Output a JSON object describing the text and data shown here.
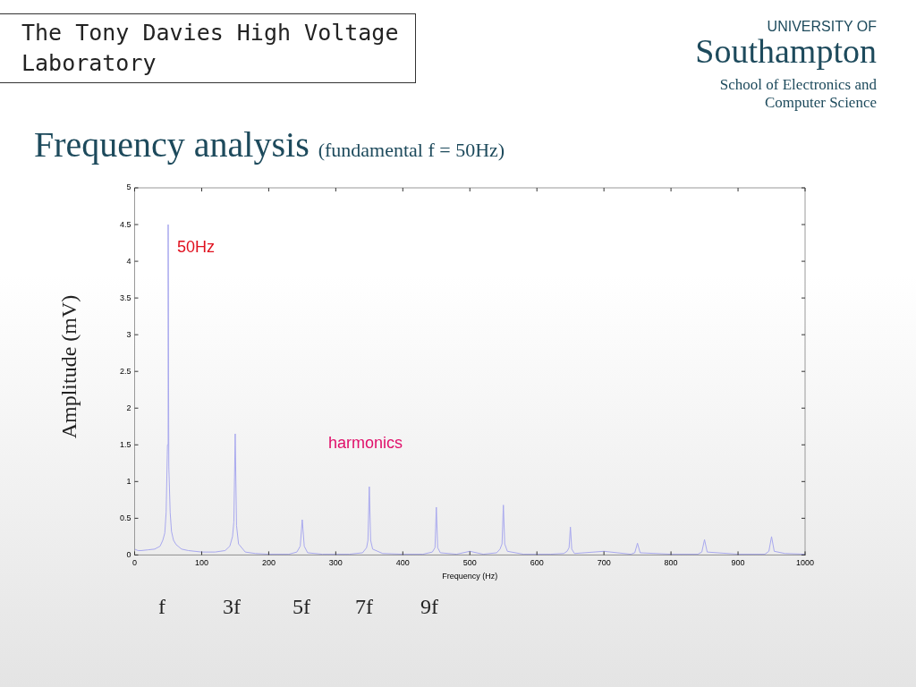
{
  "chart_data": {
    "type": "line",
    "title": "Frequency analysis",
    "subtitle": "(fundamental f = 50Hz)",
    "xlabel": "Frequency (Hz)",
    "ylabel": "Amplitude (mV)",
    "annotations": [
      "The Tony Davies High Voltage Laboratory",
      "UNIVERSITY OF Southampton",
      "School of Electronics and Computer Science",
      "50Hz",
      "harmonics",
      "f",
      "3f",
      "5f",
      "7f",
      "9f"
    ],
    "series": [
      {
        "color": "#a8a8ee",
        "x": [
          0,
          5,
          10,
          20,
          30,
          38,
          42,
          45,
          47,
          49,
          50,
          51,
          53,
          55,
          58,
          62,
          70,
          80,
          100,
          120,
          135,
          142,
          146,
          148,
          150,
          152,
          155,
          165,
          180,
          200,
          230,
          242,
          247,
          250,
          253,
          258,
          280,
          320,
          340,
          346,
          348,
          350,
          352,
          355,
          370,
          400,
          430,
          444,
          448,
          450,
          452,
          456,
          480,
          500,
          520,
          540,
          545,
          548,
          550,
          552,
          556,
          580,
          620,
          640,
          645,
          648,
          650,
          652,
          656,
          700,
          740,
          746,
          750,
          754,
          800,
          840,
          846,
          850,
          854,
          900,
          940,
          946,
          950,
          954,
          970,
          1000
        ],
        "values": [
          0.08,
          0.06,
          0.06,
          0.07,
          0.08,
          0.12,
          0.2,
          0.3,
          0.58,
          1.5,
          4.5,
          1.2,
          0.58,
          0.32,
          0.2,
          0.14,
          0.08,
          0.06,
          0.04,
          0.04,
          0.06,
          0.12,
          0.25,
          0.45,
          1.65,
          0.4,
          0.15,
          0.04,
          0.02,
          0.01,
          0.01,
          0.04,
          0.12,
          0.48,
          0.12,
          0.03,
          0.01,
          0.01,
          0.03,
          0.1,
          0.2,
          0.93,
          0.2,
          0.08,
          0.02,
          0.01,
          0.01,
          0.04,
          0.1,
          0.65,
          0.1,
          0.03,
          0.01,
          0.05,
          0.01,
          0.03,
          0.08,
          0.15,
          0.68,
          0.15,
          0.05,
          0.01,
          0.01,
          0.02,
          0.05,
          0.1,
          0.38,
          0.08,
          0.02,
          0.05,
          0.01,
          0.03,
          0.16,
          0.03,
          0.01,
          0.01,
          0.04,
          0.21,
          0.04,
          0.01,
          0.01,
          0.05,
          0.25,
          0.05,
          0.02,
          0.01
        ]
      }
    ],
    "xlim": [
      0,
      1000
    ],
    "xticks": [
      0,
      100,
      200,
      300,
      400,
      500,
      600,
      700,
      800,
      900,
      1000
    ],
    "ylim": [
      0,
      5
    ],
    "yticks": [
      0,
      0.5,
      1,
      1.5,
      2,
      2.5,
      3,
      3.5,
      4,
      4.5,
      5
    ],
    "grid": false,
    "legend": false,
    "marker": "none",
    "line_style": "solid"
  }
}
